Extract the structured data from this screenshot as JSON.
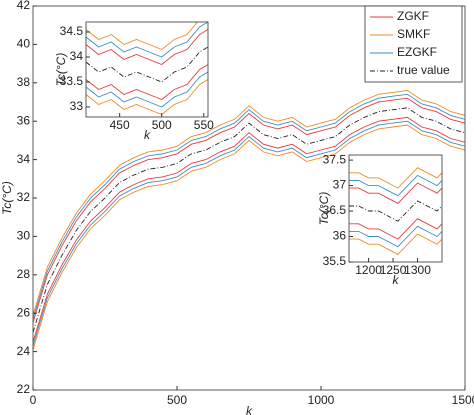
{
  "chart_data": [
    {
      "type": "line",
      "xlabel": "k",
      "ylabel": "Tc(°C)",
      "x": [
        0,
        50,
        100,
        150,
        200,
        250,
        300,
        350,
        400,
        450,
        500,
        550,
        600,
        650,
        700,
        750,
        800,
        850,
        900,
        950,
        1000,
        1050,
        1100,
        1150,
        1200,
        1250,
        1300,
        1350,
        1400,
        1450,
        1500
      ],
      "xlim": [
        0,
        1500
      ],
      "xticks": [
        0,
        500,
        1000,
        1500
      ],
      "ylim": [
        22,
        42
      ],
      "yticks": [
        22,
        24,
        26,
        28,
        30,
        32,
        34,
        36,
        38,
        40,
        42
      ],
      "legend": "upper right",
      "series": [
        {
          "name": "ZGKF",
          "color": "#e8383d",
          "upper": [
            25.5,
            28,
            29.5,
            30.8,
            31.8,
            32.5,
            33.3,
            33.7,
            34,
            34.1,
            34.3,
            34.8,
            35,
            35.4,
            35.7,
            36.4,
            35.8,
            35.6,
            35.8,
            35.3,
            35.5,
            35.7,
            36.3,
            36.7,
            37,
            37.1,
            37.2,
            36.7,
            36.5,
            36.1,
            35.9
          ],
          "lower": [
            24.5,
            27,
            28.5,
            29.8,
            30.8,
            31.5,
            32.3,
            32.7,
            33,
            33.1,
            33.3,
            33.8,
            34,
            34.4,
            34.7,
            35.4,
            34.8,
            34.6,
            34.8,
            34.3,
            34.5,
            34.7,
            35.3,
            35.7,
            36,
            36.1,
            36.2,
            35.7,
            35.5,
            35.1,
            34.9
          ]
        },
        {
          "name": "SMKF",
          "color": "#f08a24",
          "upper": [
            25.9,
            28.4,
            29.9,
            31.2,
            32.2,
            32.9,
            33.7,
            34.1,
            34.4,
            34.5,
            34.7,
            35.2,
            35.4,
            35.8,
            36.1,
            36.8,
            36.2,
            36,
            36.2,
            35.7,
            35.9,
            36.1,
            36.7,
            37.1,
            37.4,
            37.5,
            37.6,
            37.1,
            36.9,
            36.5,
            36.3
          ],
          "lower": [
            24.1,
            26.6,
            28.1,
            29.4,
            30.4,
            31.1,
            31.9,
            32.3,
            32.6,
            32.7,
            32.9,
            33.4,
            33.6,
            34,
            34.3,
            35,
            34.4,
            34.2,
            34.4,
            33.9,
            34.1,
            34.3,
            34.9,
            35.3,
            35.6,
            35.7,
            35.8,
            35.3,
            35.1,
            34.7,
            34.5
          ]
        },
        {
          "name": "EZGKF",
          "color": "#3a8fc4",
          "upper": [
            25.7,
            28.2,
            29.7,
            31,
            32,
            32.7,
            33.5,
            33.9,
            34.2,
            34.3,
            34.5,
            35,
            35.2,
            35.6,
            35.9,
            36.6,
            36,
            35.8,
            36,
            35.5,
            35.7,
            35.9,
            36.5,
            36.9,
            37.2,
            37.3,
            37.4,
            36.9,
            36.7,
            36.3,
            36.1
          ],
          "lower": [
            24.3,
            26.8,
            28.3,
            29.6,
            30.6,
            31.3,
            32.1,
            32.5,
            32.8,
            32.9,
            33.1,
            33.6,
            33.8,
            34.2,
            34.5,
            35.2,
            34.6,
            34.4,
            34.6,
            34.1,
            34.3,
            34.5,
            35.1,
            35.5,
            35.8,
            35.9,
            36,
            35.5,
            35.3,
            34.9,
            34.7
          ]
        },
        {
          "name": "true value",
          "color": "#222222",
          "dash": "dashdot",
          "values": [
            25,
            27.5,
            29,
            30.3,
            31.3,
            32,
            32.8,
            33.2,
            33.5,
            33.6,
            33.8,
            34.3,
            34.5,
            34.9,
            35.2,
            35.9,
            35.3,
            35.1,
            35.3,
            34.8,
            35,
            35.2,
            35.8,
            36.2,
            36.5,
            36.6,
            36.7,
            36.2,
            36,
            35.6,
            35.4
          ]
        }
      ]
    },
    {
      "type": "line",
      "xlabel": "k",
      "ylabel": "Tc(°C)",
      "x": [
        410,
        425,
        440,
        455,
        470,
        485,
        500,
        515,
        530,
        545,
        555
      ],
      "xlim": [
        410,
        555
      ],
      "xticks": [
        450,
        500,
        550
      ],
      "ylim": [
        32.8,
        34.7
      ],
      "yticks": [
        33,
        33.5,
        34,
        34.5
      ],
      "series": [
        {
          "color": "#e8383d",
          "upper": [
            34.25,
            34.05,
            34.15,
            33.95,
            34.05,
            33.95,
            33.85,
            34.05,
            34.15,
            34.45,
            34.55
          ],
          "lower": [
            33.55,
            33.35,
            33.45,
            33.25,
            33.35,
            33.25,
            33.15,
            33.35,
            33.45,
            33.75,
            33.85
          ]
        },
        {
          "color": "#f08a24",
          "upper": [
            34.55,
            34.35,
            34.45,
            34.25,
            34.35,
            34.25,
            34.15,
            34.35,
            34.45,
            34.75,
            34.85
          ],
          "lower": [
            33.25,
            33.05,
            33.15,
            32.95,
            33.05,
            32.95,
            32.85,
            33.05,
            33.15,
            33.45,
            33.55
          ]
        },
        {
          "color": "#3a8fc4",
          "upper": [
            34.4,
            34.2,
            34.3,
            34.1,
            34.2,
            34.1,
            34,
            34.2,
            34.3,
            34.6,
            34.7
          ],
          "lower": [
            33.4,
            33.2,
            33.3,
            33.1,
            33.2,
            33.1,
            33,
            33.2,
            33.3,
            33.6,
            33.7
          ]
        },
        {
          "color": "#222222",
          "dash": "dashdot",
          "values": [
            33.9,
            33.7,
            33.8,
            33.6,
            33.7,
            33.6,
            33.5,
            33.7,
            33.8,
            34.1,
            34.2
          ]
        }
      ]
    },
    {
      "type": "line",
      "xlabel": "k",
      "ylabel": "Tc(°C)",
      "x": [
        1160,
        1180,
        1200,
        1220,
        1240,
        1260,
        1280,
        1300,
        1320,
        1340,
        1350
      ],
      "xlim": [
        1160,
        1350
      ],
      "xticks": [
        1200,
        1250,
        1300
      ],
      "ylim": [
        35.5,
        37.6
      ],
      "yticks": [
        35.5,
        36,
        36.5,
        37,
        37.5
      ],
      "series": [
        {
          "color": "#e8383d",
          "upper": [
            36.95,
            36.95,
            36.85,
            36.85,
            36.75,
            36.65,
            36.85,
            37.05,
            36.95,
            36.85,
            36.95
          ],
          "lower": [
            36.25,
            36.25,
            36.15,
            36.15,
            36.05,
            35.95,
            36.15,
            36.35,
            36.25,
            36.15,
            36.25
          ]
        },
        {
          "color": "#f08a24",
          "upper": [
            37.25,
            37.25,
            37.15,
            37.15,
            37.05,
            36.95,
            37.15,
            37.35,
            37.25,
            37.15,
            37.25
          ],
          "lower": [
            35.95,
            35.95,
            35.85,
            35.85,
            35.75,
            35.65,
            35.85,
            36.05,
            35.95,
            35.85,
            35.95
          ]
        },
        {
          "color": "#3a8fc4",
          "upper": [
            37.1,
            37.1,
            37,
            37,
            36.9,
            36.8,
            37,
            37.2,
            37.1,
            37,
            37.1
          ],
          "lower": [
            36.1,
            36.1,
            36,
            36,
            35.9,
            35.8,
            36,
            36.2,
            36.1,
            36,
            36.1
          ]
        },
        {
          "color": "#222222",
          "dash": "dashdot",
          "values": [
            36.6,
            36.6,
            36.5,
            36.5,
            36.4,
            36.3,
            36.5,
            36.7,
            36.6,
            36.5,
            36.6
          ]
        }
      ]
    }
  ]
}
